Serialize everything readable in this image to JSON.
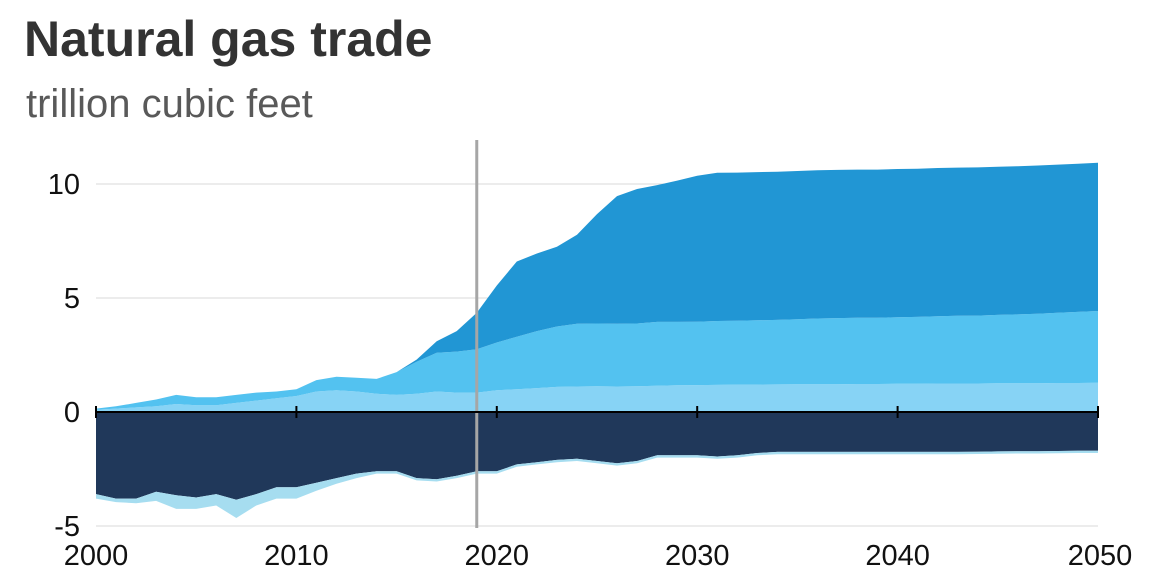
{
  "title": "Natural gas trade",
  "subtitle": "trillion cubic feet",
  "chart_data": {
    "type": "area",
    "title": "Natural gas trade",
    "subtitle": "trillion cubic feet",
    "xlabel": "",
    "ylabel": "",
    "xlim": [
      2000,
      2050
    ],
    "ylim": [
      -5,
      12
    ],
    "x_ticks": [
      "2000",
      "2010",
      "2020",
      "2030",
      "2040",
      "2050"
    ],
    "y_ticks": [
      "10",
      "5",
      "0",
      "-5"
    ],
    "y_tick_values": [
      10,
      5,
      0,
      -5
    ],
    "reference_line_x": 2019,
    "grid": "horizontal",
    "x": [
      2000,
      2001,
      2002,
      2003,
      2004,
      2005,
      2006,
      2007,
      2008,
      2009,
      2010,
      2011,
      2012,
      2013,
      2014,
      2015,
      2016,
      2017,
      2018,
      2019,
      2020,
      2021,
      2022,
      2023,
      2024,
      2025,
      2026,
      2027,
      2028,
      2029,
      2030,
      2031,
      2032,
      2033,
      2034,
      2035,
      2036,
      2037,
      2038,
      2039,
      2040,
      2041,
      2042,
      2043,
      2044,
      2045,
      2046,
      2047,
      2048,
      2049,
      2050
    ],
    "series": [
      {
        "name": "",
        "color": "#87d3f5",
        "values": [
          0.1,
          0.15,
          0.2,
          0.25,
          0.35,
          0.3,
          0.3,
          0.4,
          0.5,
          0.6,
          0.7,
          0.9,
          0.95,
          0.9,
          0.8,
          0.75,
          0.8,
          0.9,
          0.85,
          0.85,
          0.95,
          1.0,
          1.05,
          1.1,
          1.12,
          1.13,
          1.12,
          1.13,
          1.15,
          1.17,
          1.18,
          1.19,
          1.2,
          1.2,
          1.21,
          1.22,
          1.22,
          1.22,
          1.23,
          1.23,
          1.24,
          1.24,
          1.25,
          1.25,
          1.25,
          1.26,
          1.26,
          1.26,
          1.27,
          1.27,
          1.28
        ]
      },
      {
        "name": "",
        "color": "#53c2f0",
        "values": [
          0.05,
          0.1,
          0.2,
          0.3,
          0.4,
          0.35,
          0.35,
          0.35,
          0.35,
          0.3,
          0.3,
          0.5,
          0.6,
          0.6,
          0.65,
          1.0,
          1.4,
          1.7,
          1.8,
          1.9,
          2.1,
          2.3,
          2.5,
          2.65,
          2.75,
          2.75,
          2.75,
          2.75,
          2.8,
          2.78,
          2.78,
          2.8,
          2.8,
          2.82,
          2.83,
          2.85,
          2.88,
          2.9,
          2.9,
          2.9,
          2.92,
          2.93,
          2.95,
          2.97,
          2.98,
          3.0,
          3.02,
          3.05,
          3.08,
          3.12,
          3.15
        ]
      },
      {
        "name": "",
        "color": "#2196d4",
        "values": [
          0,
          0,
          0,
          0,
          0,
          0,
          0,
          0,
          0,
          0,
          0,
          0,
          0,
          0,
          0,
          0,
          0.1,
          0.5,
          0.9,
          1.6,
          2.5,
          3.3,
          3.4,
          3.5,
          3.9,
          4.8,
          5.6,
          5.9,
          6.0,
          6.2,
          6.4,
          6.5,
          6.5,
          6.5,
          6.5,
          6.5,
          6.5,
          6.5,
          6.5,
          6.5,
          6.5,
          6.5,
          6.5,
          6.5,
          6.5,
          6.5,
          6.5,
          6.5,
          6.5,
          6.5,
          6.5
        ]
      },
      {
        "name": "",
        "color": "#20385a",
        "values": [
          -3.6,
          -3.8,
          -3.8,
          -3.5,
          -3.65,
          -3.75,
          -3.6,
          -3.85,
          -3.6,
          -3.3,
          -3.3,
          -3.1,
          -2.9,
          -2.7,
          -2.6,
          -2.6,
          -2.9,
          -2.95,
          -2.8,
          -2.6,
          -2.6,
          -2.3,
          -2.2,
          -2.1,
          -2.05,
          -2.15,
          -2.25,
          -2.15,
          -1.9,
          -1.9,
          -1.9,
          -1.95,
          -1.9,
          -1.8,
          -1.75,
          -1.75,
          -1.75,
          -1.75,
          -1.75,
          -1.75,
          -1.75,
          -1.75,
          -1.75,
          -1.75,
          -1.74,
          -1.73,
          -1.72,
          -1.72,
          -1.71,
          -1.7,
          -1.7
        ]
      },
      {
        "name": "",
        "color": "#a6ddf0",
        "values": [
          -0.2,
          -0.15,
          -0.2,
          -0.4,
          -0.6,
          -0.5,
          -0.5,
          -0.8,
          -0.5,
          -0.5,
          -0.5,
          -0.35,
          -0.25,
          -0.2,
          -0.1,
          -0.1,
          -0.1,
          -0.1,
          -0.1,
          -0.1,
          -0.1,
          -0.1,
          -0.1,
          -0.1,
          -0.1,
          -0.1,
          -0.1,
          -0.1,
          -0.1,
          -0.1,
          -0.1,
          -0.1,
          -0.1,
          -0.1,
          -0.1,
          -0.1,
          -0.1,
          -0.1,
          -0.1,
          -0.1,
          -0.1,
          -0.1,
          -0.1,
          -0.1,
          -0.1,
          -0.1,
          -0.1,
          -0.1,
          -0.1,
          -0.1,
          -0.1
        ]
      }
    ]
  }
}
